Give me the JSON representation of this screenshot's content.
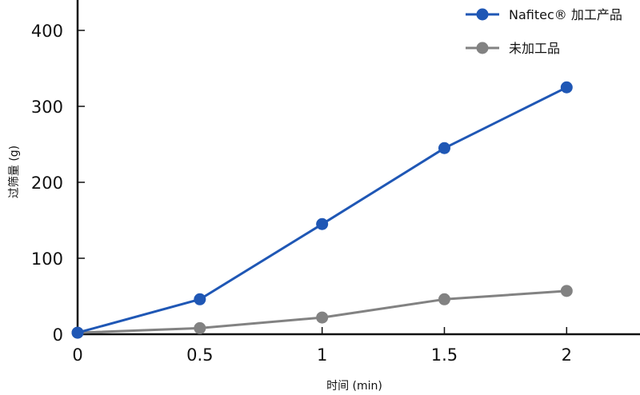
{
  "chart_data": {
    "type": "line",
    "xlabel": "时间 (min)",
    "ylabel": "过筛量 (g)",
    "x": [
      0,
      0.5,
      1,
      1.5,
      2
    ],
    "x_tick_labels": [
      "0",
      "0.5",
      "1",
      "1.5",
      "2"
    ],
    "y_tick_labels": [
      "0",
      "100",
      "200",
      "300",
      "400"
    ],
    "xlim": [
      0,
      2.3
    ],
    "ylim": [
      0,
      440
    ],
    "grid": false,
    "legend_position": "top-right",
    "series": [
      {
        "name": "Nafitec® 加工产品",
        "color": "#1f57b5",
        "values": [
          2,
          46,
          145,
          245,
          325
        ]
      },
      {
        "name": "未加工品",
        "color": "#828282",
        "values": [
          2,
          8,
          22,
          46,
          57
        ]
      }
    ]
  }
}
